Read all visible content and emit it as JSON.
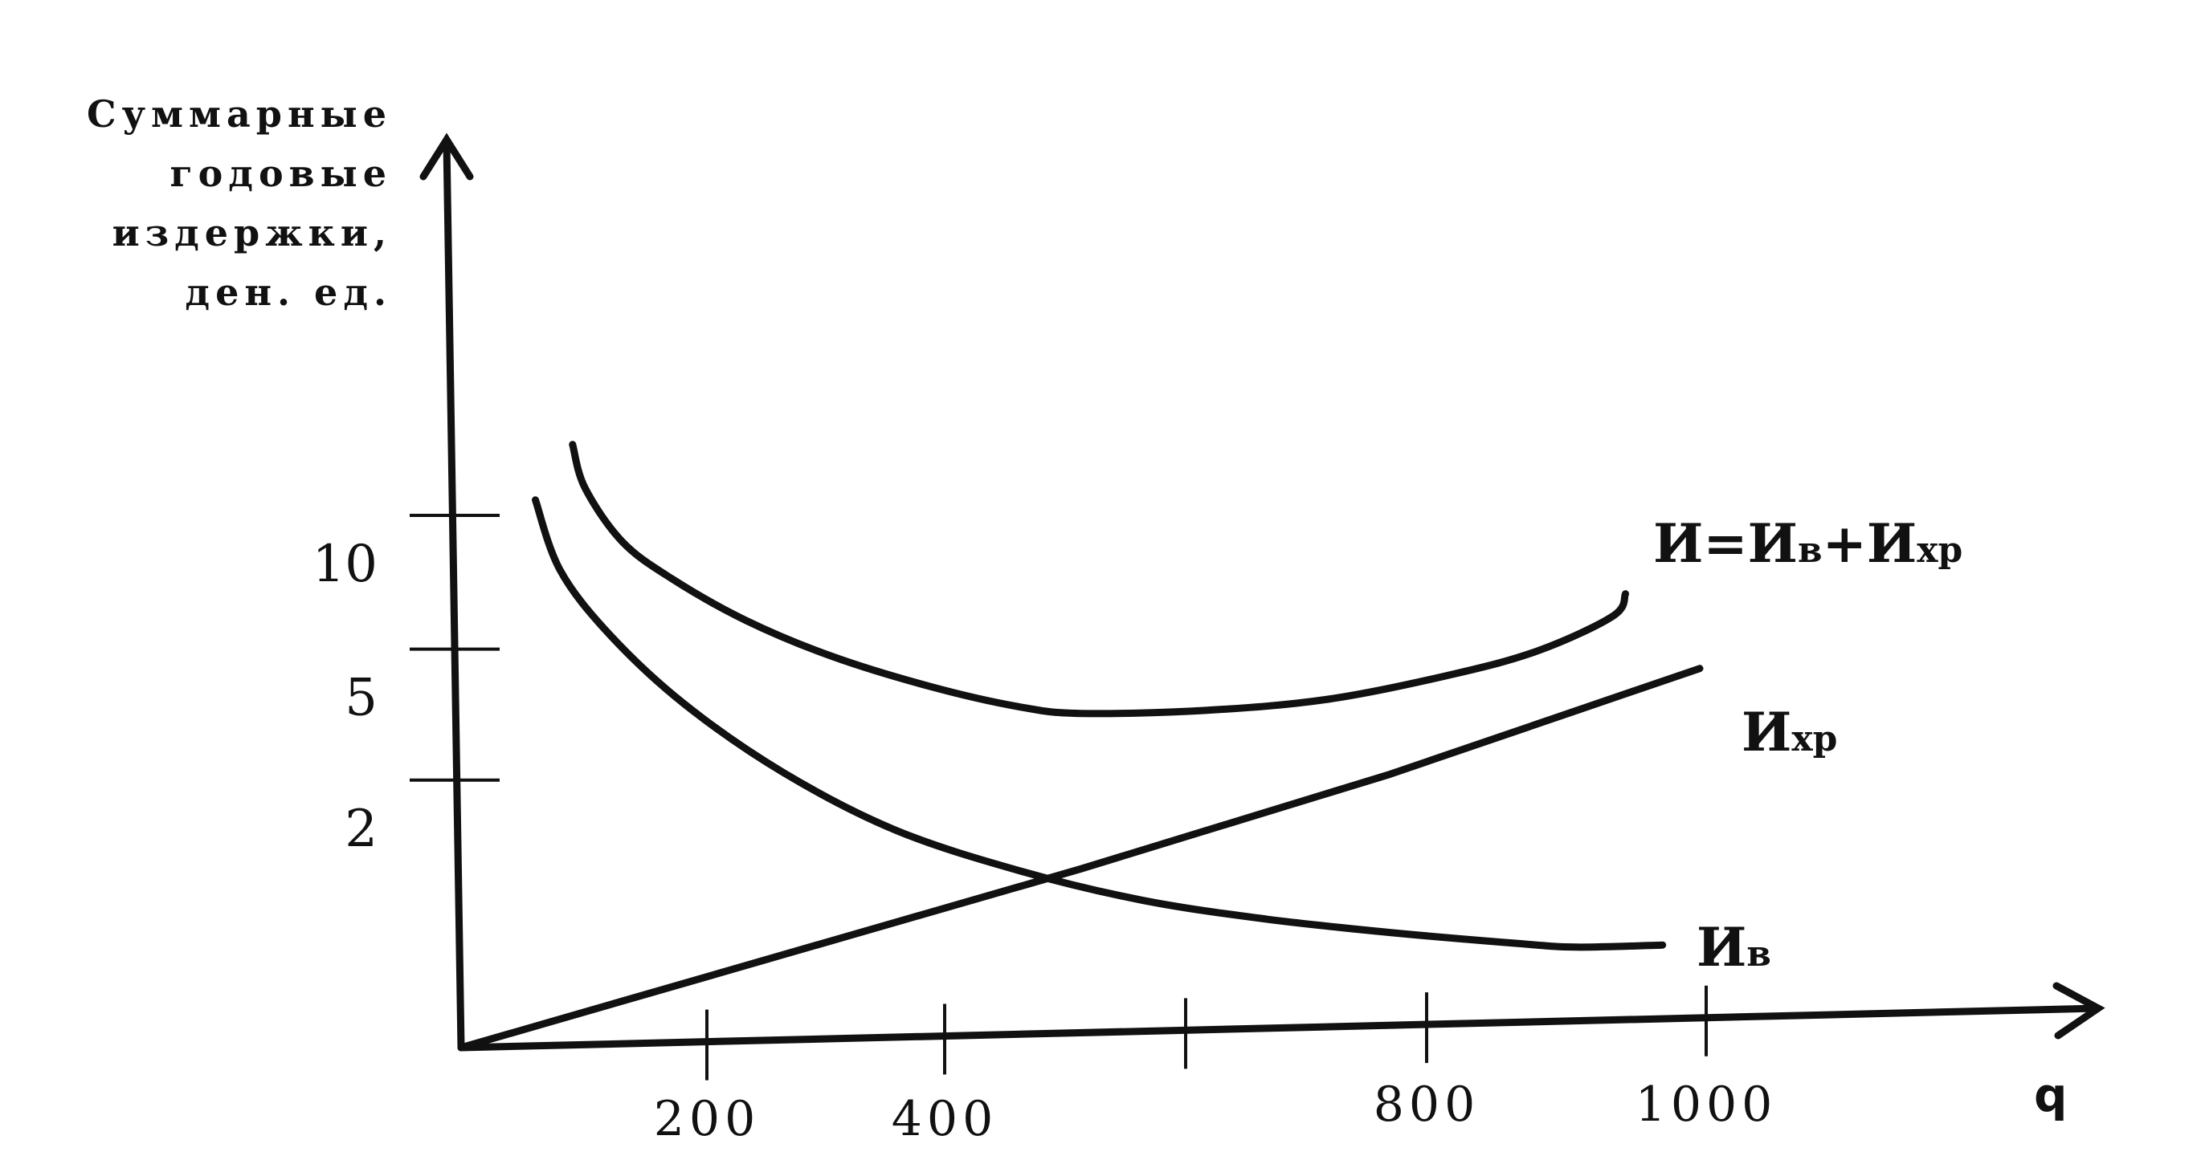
{
  "chart_data": {
    "type": "line",
    "title": "",
    "ylabel_lines": [
      "Суммарные",
      "годовые",
      "издержки,",
      "ден. ед."
    ],
    "xlabel": "q",
    "x_ticks": [
      200,
      400,
      600,
      800,
      1000
    ],
    "x_tick_labels": [
      "200",
      "400",
      "",
      "800",
      "1000"
    ],
    "y_ticks": [
      2,
      5,
      10
    ],
    "y_tick_labels": [
      "2",
      "5",
      "10"
    ],
    "xlim": [
      0,
      1000
    ],
    "ylim": [
      0,
      10
    ],
    "grid": false,
    "legend": "inline labels at line ends",
    "series": [
      {
        "name": "И=Ив+Ихр",
        "label_main": "И=И",
        "label_sub1": "в",
        "label_mid": "+И",
        "label_sub2": "хр",
        "x": [
          90,
          100,
          130,
          170,
          230,
          300,
          380,
          450,
          500,
          600,
          700,
          800,
          870,
          930,
          940
        ],
        "y": [
          11,
          10.2,
          9.2,
          8.5,
          7.7,
          7.0,
          6.4,
          6.0,
          5.85,
          5.85,
          6.0,
          6.4,
          6.8,
          7.4,
          7.8
        ]
      },
      {
        "name": "Ихр",
        "label_main": "И",
        "label_sub": "хр",
        "x": [
          0,
          250,
          500,
          750,
          1000
        ],
        "y": [
          0,
          1.5,
          3.0,
          4.6,
          6.4
        ]
      },
      {
        "name": "Ив",
        "label_main": "И",
        "label_sub": "в",
        "x": [
          60,
          80,
          120,
          180,
          260,
          350,
          450,
          550,
          650,
          750,
          850,
          900,
          970
        ],
        "y": [
          10,
          8.7,
          7.5,
          6.2,
          4.9,
          3.8,
          3.0,
          2.4,
          2.0,
          1.7,
          1.45,
          1.35,
          1.35
        ]
      }
    ]
  }
}
